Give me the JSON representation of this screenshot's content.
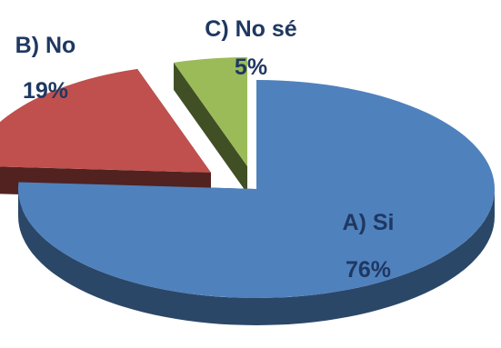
{
  "chart_data": {
    "type": "pie",
    "style": "3d-exploded",
    "slices": [
      {
        "name": "A) Si",
        "value": 76,
        "value_label": "76%",
        "color": "#4f81bd"
      },
      {
        "name": "B) No",
        "value": 19,
        "value_label": "19%",
        "color": "#c0504d"
      },
      {
        "name": "C) No sé",
        "value": 5,
        "value_label": "5%",
        "color": "#9bbb59"
      }
    ],
    "legend": "none"
  }
}
